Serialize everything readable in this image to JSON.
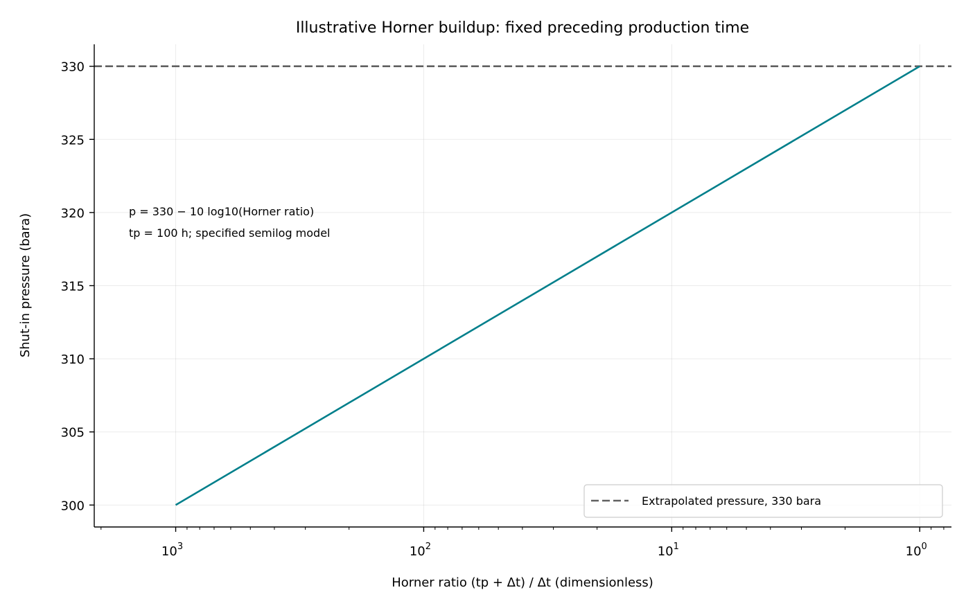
{
  "chart_data": {
    "type": "line",
    "title": "Illustrative Horner buildup: fixed preceding production time",
    "xlabel": "Horner ratio (tp + Δt) / Δt (dimensionless)",
    "ylabel": "Shut-in pressure (bara)",
    "x_scale": "log",
    "x_inverted": true,
    "xlim": [
      2130,
      0.745
    ],
    "ylim": [
      298.5,
      331.5
    ],
    "x_ticks": [
      {
        "value": 1000,
        "base": "10",
        "exp": "3"
      },
      {
        "value": 100,
        "base": "10",
        "exp": "2"
      },
      {
        "value": 10,
        "base": "10",
        "exp": "1"
      },
      {
        "value": 1,
        "base": "10",
        "exp": "0"
      }
    ],
    "y_ticks": [
      300,
      305,
      310,
      315,
      320,
      325,
      330
    ],
    "grid": true,
    "series": [
      {
        "name": "",
        "color": "#007f8b",
        "x": [
          1000,
          1
        ],
        "y": [
          300,
          330
        ]
      }
    ],
    "reference_lines": [
      {
        "name": "Extrapolated pressure, 330 bara",
        "y": 330,
        "color": "#606060",
        "style": "dashed"
      }
    ],
    "annotations": [
      "p = 330 − 10 log10(Horner ratio)",
      "tp = 100 h; specified semilog model"
    ],
    "legend_placement": "lower-right"
  }
}
